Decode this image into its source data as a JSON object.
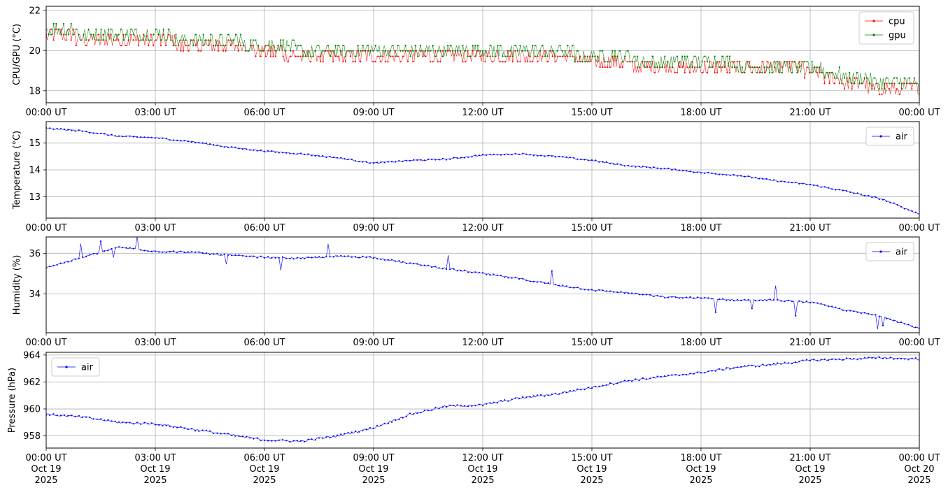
{
  "chart_data": [
    {
      "type": "line",
      "ylabel": "CPU/GPU (°C)",
      "xlim": [
        "2025-10-19T00:00Z",
        "2025-10-20T00:00Z"
      ],
      "ylim": [
        17.4,
        22.2
      ],
      "yticks": [
        18,
        20,
        22
      ],
      "xtick_labels": [
        "00:00 UT",
        "03:00 UT",
        "06:00 UT",
        "09:00 UT",
        "12:00 UT",
        "15:00 UT",
        "18:00 UT",
        "21:00 UT",
        "00:00 UT"
      ],
      "grid": true,
      "legend_position": "top-right",
      "series": [
        {
          "name": "cpu",
          "color": "#ff0000",
          "x": [
            "00:00",
            "01:00",
            "02:00",
            "03:00",
            "04:00",
            "05:00",
            "06:00",
            "07:00",
            "08:00",
            "09:00",
            "10:00",
            "11:00",
            "12:00",
            "13:00",
            "14:00",
            "15:00",
            "16:00",
            "17:00",
            "18:00",
            "19:00",
            "20:00",
            "21:00",
            "22:00",
            "23:00",
            "24:00"
          ],
          "y": [
            20.9,
            20.6,
            20.6,
            20.5,
            20.3,
            20.3,
            20.0,
            19.7,
            19.7,
            19.6,
            19.6,
            19.6,
            19.7,
            19.7,
            19.7,
            19.5,
            19.3,
            19.3,
            19.2,
            19.2,
            19.2,
            19.0,
            18.4,
            18.1,
            18.0
          ]
        },
        {
          "name": "gpu",
          "color": "#008000",
          "x": [
            "00:00",
            "01:00",
            "02:00",
            "03:00",
            "04:00",
            "05:00",
            "06:00",
            "07:00",
            "08:00",
            "09:00",
            "10:00",
            "11:00",
            "12:00",
            "13:00",
            "14:00",
            "15:00",
            "16:00",
            "17:00",
            "18:00",
            "19:00",
            "20:00",
            "21:00",
            "22:00",
            "23:00",
            "24:00"
          ],
          "y": [
            21.1,
            20.9,
            20.9,
            20.8,
            20.5,
            20.5,
            20.2,
            20.1,
            20.0,
            19.9,
            19.9,
            19.9,
            20.0,
            20.0,
            20.0,
            19.7,
            19.6,
            19.5,
            19.4,
            19.3,
            19.3,
            19.2,
            18.7,
            18.4,
            18.2
          ]
        }
      ]
    },
    {
      "type": "line",
      "ylabel": "Temperature (°C)",
      "xlim": [
        "2025-10-19T00:00Z",
        "2025-10-20T00:00Z"
      ],
      "ylim": [
        12.2,
        15.8
      ],
      "yticks": [
        13,
        14,
        15
      ],
      "xtick_labels": [
        "00:00 UT",
        "03:00 UT",
        "06:00 UT",
        "09:00 UT",
        "12:00 UT",
        "15:00 UT",
        "18:00 UT",
        "21:00 UT",
        "00:00 UT"
      ],
      "grid": true,
      "legend_position": "top-right",
      "series": [
        {
          "name": "air",
          "color": "#0000ff",
          "x": [
            "00:00",
            "01:00",
            "02:00",
            "03:00",
            "04:00",
            "05:00",
            "06:00",
            "07:00",
            "08:00",
            "09:00",
            "10:00",
            "11:00",
            "12:00",
            "13:00",
            "14:00",
            "15:00",
            "16:00",
            "17:00",
            "18:00",
            "19:00",
            "20:00",
            "21:00",
            "22:00",
            "23:00",
            "24:00"
          ],
          "y": [
            15.55,
            15.45,
            15.25,
            15.2,
            15.05,
            14.85,
            14.7,
            14.6,
            14.45,
            14.25,
            14.35,
            14.4,
            14.55,
            14.6,
            14.5,
            14.35,
            14.15,
            14.05,
            13.9,
            13.8,
            13.6,
            13.45,
            13.2,
            12.9,
            12.35
          ]
        }
      ]
    },
    {
      "type": "line",
      "ylabel": "Humidity (%)",
      "xlim": [
        "2025-10-19T00:00Z",
        "2025-10-20T00:00Z"
      ],
      "ylim": [
        32.1,
        36.8
      ],
      "yticks": [
        34,
        36
      ],
      "xtick_labels": [
        "00:00 UT",
        "03:00 UT",
        "06:00 UT",
        "09:00 UT",
        "12:00 UT",
        "15:00 UT",
        "18:00 UT",
        "21:00 UT",
        "00:00 UT"
      ],
      "grid": true,
      "legend_position": "top-right",
      "series": [
        {
          "name": "air",
          "color": "#0000ff",
          "x": [
            "00:00",
            "01:00",
            "02:00",
            "03:00",
            "04:00",
            "05:00",
            "06:00",
            "07:00",
            "08:00",
            "09:00",
            "10:00",
            "11:00",
            "12:00",
            "13:00",
            "14:00",
            "15:00",
            "16:00",
            "17:00",
            "18:00",
            "19:00",
            "20:00",
            "21:00",
            "22:00",
            "23:00",
            "24:00"
          ],
          "y": [
            35.3,
            35.8,
            36.3,
            36.1,
            36.05,
            35.9,
            35.8,
            35.75,
            35.85,
            35.8,
            35.5,
            35.25,
            35.0,
            34.75,
            34.45,
            34.2,
            34.05,
            33.85,
            33.8,
            33.7,
            33.7,
            33.6,
            33.2,
            32.9,
            32.3
          ]
        }
      ]
    },
    {
      "type": "line",
      "ylabel": "Pressure (hPa)",
      "xlim": [
        "2025-10-19T00:00Z",
        "2025-10-20T00:00Z"
      ],
      "ylim": [
        957.1,
        964.2
      ],
      "yticks": [
        958,
        960,
        962,
        964
      ],
      "xtick_labels": [
        "00:00 UT\nOct 19\n2025",
        "03:00 UT\nOct 19\n2025",
        "06:00 UT\nOct 19\n2025",
        "09:00 UT\nOct 19\n2025",
        "12:00 UT\nOct 19\n2025",
        "15:00 UT\nOct 19\n2025",
        "18:00 UT\nOct 19\n2025",
        "21:00 UT\nOct 19\n2025",
        "00:00 UT\nOct 20\n2025"
      ],
      "grid": true,
      "legend_position": "top-left",
      "series": [
        {
          "name": "air",
          "color": "#0000ff",
          "x": [
            "00:00",
            "01:00",
            "02:00",
            "03:00",
            "04:00",
            "05:00",
            "06:00",
            "07:00",
            "08:00",
            "09:00",
            "10:00",
            "11:00",
            "12:00",
            "13:00",
            "14:00",
            "15:00",
            "16:00",
            "17:00",
            "18:00",
            "19:00",
            "20:00",
            "21:00",
            "22:00",
            "23:00",
            "24:00"
          ],
          "y": [
            959.6,
            959.4,
            959.0,
            958.9,
            958.5,
            958.1,
            957.7,
            957.6,
            958.0,
            958.6,
            959.6,
            960.2,
            960.3,
            960.8,
            961.1,
            961.6,
            962.1,
            962.4,
            962.7,
            963.1,
            963.3,
            963.6,
            963.7,
            963.8,
            963.7
          ]
        }
      ]
    }
  ]
}
